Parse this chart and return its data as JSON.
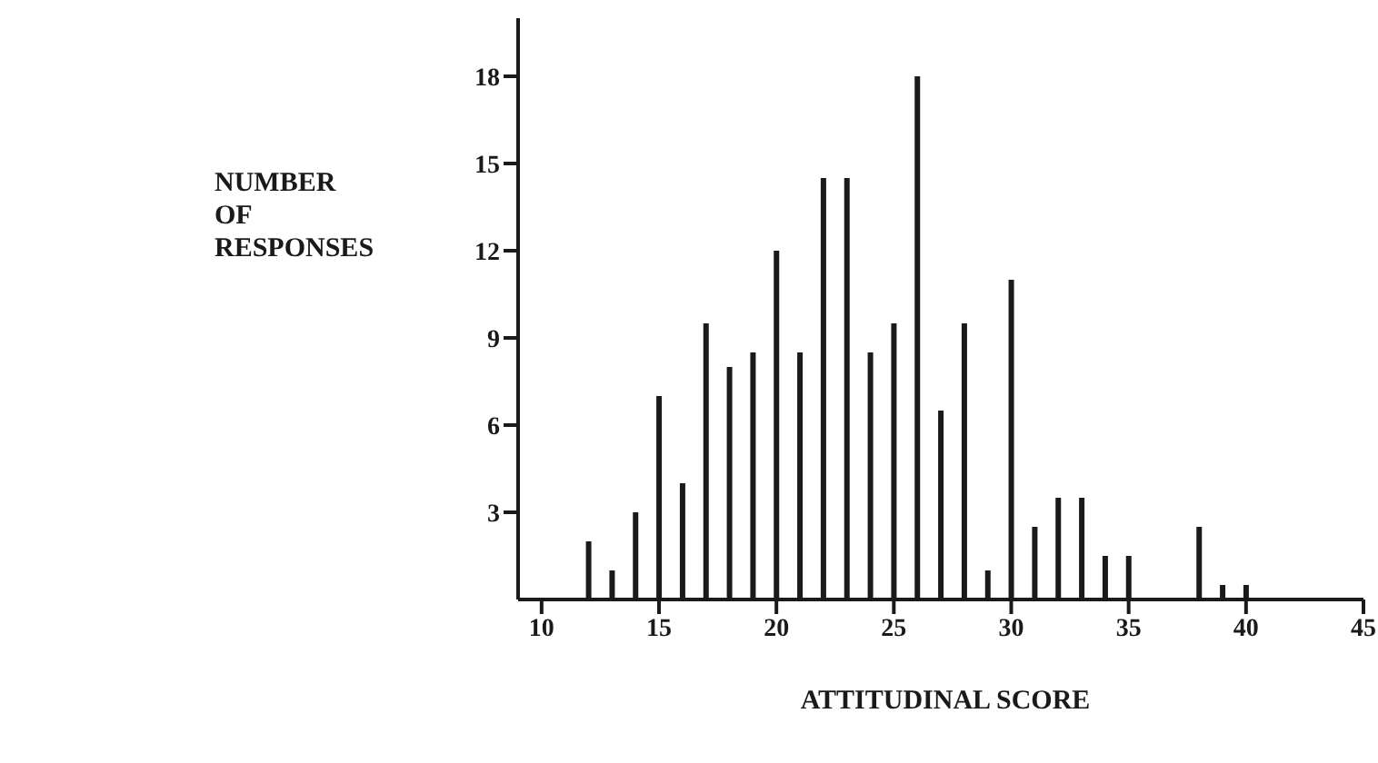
{
  "chart_data": {
    "type": "bar",
    "xlabel": "ATTITUDINAL SCORE",
    "ylabel": "NUMBER OF RESPONSES",
    "x": [
      10,
      11,
      12,
      13,
      14,
      15,
      16,
      17,
      18,
      19,
      20,
      21,
      22,
      23,
      24,
      25,
      26,
      27,
      28,
      29,
      30,
      31,
      32,
      33,
      34,
      35,
      36,
      37,
      38,
      39,
      40,
      41,
      42,
      43,
      44,
      45
    ],
    "values": [
      0,
      0,
      2,
      1,
      3,
      7,
      4,
      9.5,
      8,
      8.5,
      12,
      8.5,
      14.5,
      14.5,
      8.5,
      9.5,
      18,
      6.5,
      9.5,
      1,
      11,
      2.5,
      3.5,
      3.5,
      1.5,
      1.5,
      0,
      0,
      2.5,
      0.5,
      0.5,
      0,
      0,
      0,
      0,
      0
    ],
    "color": "#1a1a1a",
    "xlim": [
      9,
      45
    ],
    "xticks": [
      10,
      15,
      20,
      25,
      30,
      35,
      40,
      45
    ],
    "ylim": [
      0,
      20
    ],
    "yticks": [
      3,
      6,
      9,
      12,
      15,
      18
    ],
    "grid": false
  }
}
